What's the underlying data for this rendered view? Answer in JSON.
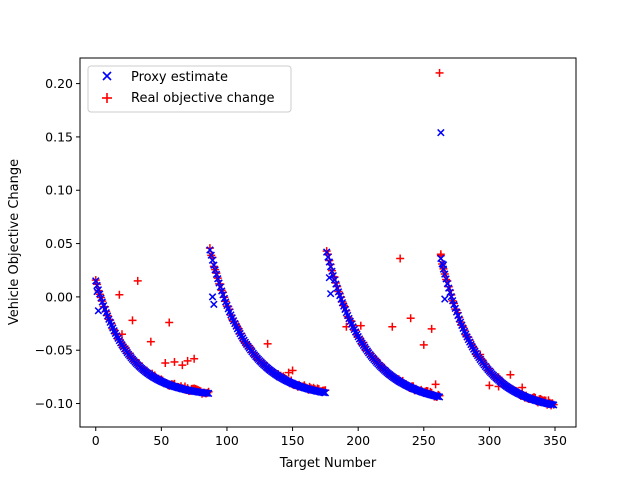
{
  "chart_data": {
    "type": "scatter",
    "title": "",
    "xlabel": "Target Number",
    "ylabel": "Vehicle Objective Change",
    "xlim": [
      -12,
      366
    ],
    "ylim": [
      -0.122,
      0.224
    ],
    "xticks": [
      0,
      50,
      100,
      150,
      200,
      250,
      300,
      350
    ],
    "yticks": [
      -0.1,
      -0.05,
      0.0,
      0.05,
      0.1,
      0.15,
      0.2
    ],
    "ytick_labels": [
      "−0.10",
      "−0.05",
      "0.00",
      "0.05",
      "0.10",
      "0.15",
      "0.20"
    ],
    "grid": false,
    "legend_position": "top-left",
    "series": [
      {
        "name": "Proxy estimate",
        "marker": "x",
        "color": "#0000ff"
      },
      {
        "name": "Real objective change",
        "marker": "+",
        "color": "#ff0000"
      }
    ],
    "groups": [
      {
        "x_start": 0,
        "x_end": 87,
        "peak": 0.015,
        "floor": -0.094,
        "tau": 25
      },
      {
        "x_start": 87,
        "x_end": 176,
        "peak": 0.044,
        "floor": -0.096,
        "tau": 28
      },
      {
        "x_start": 176,
        "x_end": 263,
        "peak": 0.042,
        "floor": -0.102,
        "tau": 30
      },
      {
        "x_start": 263,
        "x_end": 350,
        "peak": 0.036,
        "floor": -0.108,
        "tau": 28
      }
    ],
    "extra_points": {
      "proxy": [
        [
          263,
          0.154
        ],
        [
          1,
          0.005
        ],
        [
          2,
          -0.013
        ],
        [
          89,
          0.0
        ],
        [
          90,
          -0.007
        ],
        [
          178,
          0.018
        ],
        [
          179,
          0.003
        ],
        [
          265,
          0.03
        ],
        [
          266,
          -0.002
        ]
      ],
      "real": [
        [
          262,
          0.21
        ],
        [
          263,
          0.04
        ],
        [
          18,
          0.002
        ],
        [
          20,
          -0.035
        ],
        [
          32,
          0.015
        ],
        [
          28,
          -0.022
        ],
        [
          42,
          -0.042
        ],
        [
          56,
          -0.024
        ],
        [
          53,
          -0.062
        ],
        [
          60,
          -0.061
        ],
        [
          66,
          -0.064
        ],
        [
          70,
          -0.06
        ],
        [
          68,
          -0.084
        ],
        [
          75,
          -0.058
        ],
        [
          131,
          -0.044
        ],
        [
          147,
          -0.071
        ],
        [
          150,
          -0.069
        ],
        [
          189,
          -0.008
        ],
        [
          191,
          -0.028
        ],
        [
          202,
          -0.027
        ],
        [
          214,
          -0.059
        ],
        [
          226,
          -0.028
        ],
        [
          232,
          0.036
        ],
        [
          240,
          -0.02
        ],
        [
          250,
          -0.045
        ],
        [
          256,
          -0.03
        ],
        [
          259,
          -0.082
        ],
        [
          293,
          -0.054
        ],
        [
          300,
          -0.083
        ],
        [
          307,
          -0.084
        ],
        [
          316,
          -0.073
        ],
        [
          325,
          -0.085
        ],
        [
          342,
          -0.097
        ],
        [
          345,
          -0.097
        ]
      ]
    }
  }
}
